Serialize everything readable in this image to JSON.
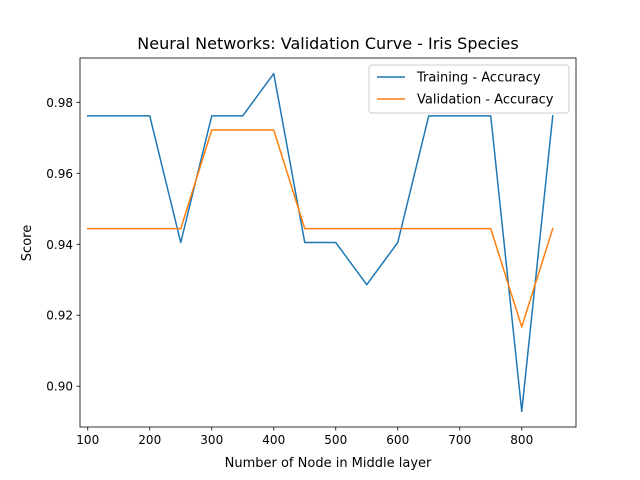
{
  "chart_data": {
    "type": "line",
    "title": "Neural Networks: Validation Curve - Iris Species",
    "xlabel": "Number of Node in Middle layer",
    "ylabel": "Score",
    "xlim": [
      87.5,
      887.5
    ],
    "ylim": [
      0.8885,
      0.9925
    ],
    "x_ticks": [
      100,
      200,
      300,
      400,
      500,
      600,
      700,
      800
    ],
    "y_ticks": [
      0.9,
      0.92,
      0.94,
      0.96,
      0.98
    ],
    "y_tick_labels": [
      "0.90",
      "0.92",
      "0.94",
      "0.96",
      "0.98"
    ],
    "x": [
      100,
      150,
      200,
      250,
      300,
      350,
      400,
      450,
      500,
      550,
      600,
      650,
      700,
      750,
      800,
      850
    ],
    "series": [
      {
        "name": "Training - Accuracy",
        "color": "#1f77b4",
        "values": [
          0.9762,
          0.9762,
          0.9762,
          0.9405,
          0.9762,
          0.9762,
          0.9881,
          0.9405,
          0.9405,
          0.9286,
          0.9405,
          0.9762,
          0.9762,
          0.9762,
          0.8929,
          0.9762
        ]
      },
      {
        "name": "Validation - Accuracy",
        "color": "#ff7f0e",
        "values": [
          0.9444,
          0.9444,
          0.9444,
          0.9444,
          0.9722,
          0.9722,
          0.9722,
          0.9444,
          0.9444,
          0.9444,
          0.9444,
          0.9444,
          0.9444,
          0.9444,
          0.9167,
          0.9444
        ]
      }
    ],
    "legend_position": "upper right",
    "grid": false
  }
}
